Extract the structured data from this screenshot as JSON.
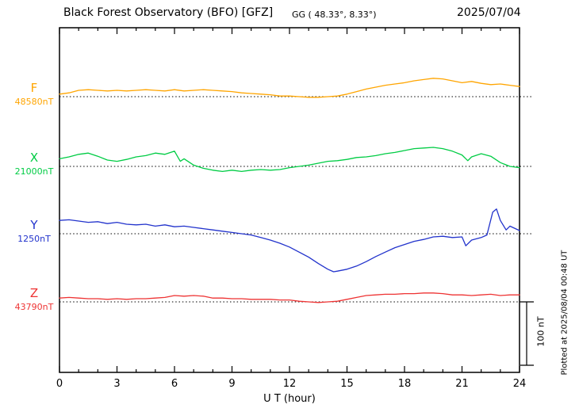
{
  "chart_data": {
    "type": "line",
    "title": "Black Forest Observatory (BFO)  [GFZ]",
    "subtitle": "GG ( 48.33°,  8.33°)",
    "date": "2025/07/04",
    "xlabel": "U T (hour)",
    "x_range": [
      0,
      24
    ],
    "x_ticks_major": [
      0,
      3,
      6,
      9,
      12,
      15,
      18,
      21,
      24
    ],
    "x_minor_step": 1,
    "y_unit": "nT",
    "scale_bar": {
      "label": "100 nT",
      "nT": 100
    },
    "plotted_note": "Plotted at 2025/08/04 00:48 UT",
    "values_are": "offset in nT from each component baseline",
    "series": [
      {
        "name": "F",
        "baseline_label": "48580nT",
        "baseline_nT": 48580,
        "color": "#FFA500",
        "points": [
          [
            0,
            4
          ],
          [
            0.5,
            6
          ],
          [
            1,
            10
          ],
          [
            1.5,
            11
          ],
          [
            2,
            10
          ],
          [
            2.5,
            9
          ],
          [
            3,
            10
          ],
          [
            3.5,
            9
          ],
          [
            4,
            10
          ],
          [
            4.5,
            11
          ],
          [
            5,
            10
          ],
          [
            5.5,
            9
          ],
          [
            6,
            11
          ],
          [
            6.5,
            9
          ],
          [
            7,
            10
          ],
          [
            7.5,
            11
          ],
          [
            8,
            10
          ],
          [
            8.5,
            9
          ],
          [
            9,
            8
          ],
          [
            9.5,
            6
          ],
          [
            10,
            5
          ],
          [
            10.5,
            4
          ],
          [
            11,
            3
          ],
          [
            11.5,
            1
          ],
          [
            12,
            1
          ],
          [
            12.5,
            0
          ],
          [
            13,
            -1
          ],
          [
            13.5,
            -1
          ],
          [
            14,
            0
          ],
          [
            14.5,
            1
          ],
          [
            15,
            4
          ],
          [
            15.5,
            8
          ],
          [
            16,
            12
          ],
          [
            16.5,
            15
          ],
          [
            17,
            18
          ],
          [
            17.5,
            20
          ],
          [
            18,
            22
          ],
          [
            18.5,
            25
          ],
          [
            19,
            27
          ],
          [
            19.5,
            29
          ],
          [
            20,
            28
          ],
          [
            20.5,
            25
          ],
          [
            21,
            22
          ],
          [
            21.5,
            24
          ],
          [
            22,
            21
          ],
          [
            22.5,
            19
          ],
          [
            23,
            20
          ],
          [
            23.5,
            18
          ],
          [
            24,
            16
          ]
        ]
      },
      {
        "name": "X",
        "baseline_label": "21000nT",
        "baseline_nT": 21000,
        "color": "#00CC44",
        "points": [
          [
            0,
            12
          ],
          [
            0.5,
            15
          ],
          [
            1,
            19
          ],
          [
            1.5,
            21
          ],
          [
            2,
            16
          ],
          [
            2.5,
            10
          ],
          [
            3,
            8
          ],
          [
            3.5,
            11
          ],
          [
            4,
            15
          ],
          [
            4.5,
            17
          ],
          [
            5,
            21
          ],
          [
            5.5,
            19
          ],
          [
            6,
            24
          ],
          [
            6.3,
            8
          ],
          [
            6.5,
            12
          ],
          [
            7,
            2
          ],
          [
            7.5,
            -3
          ],
          [
            8,
            -6
          ],
          [
            8.5,
            -8
          ],
          [
            9,
            -6
          ],
          [
            9.5,
            -8
          ],
          [
            10,
            -6
          ],
          [
            10.5,
            -5
          ],
          [
            11,
            -6
          ],
          [
            11.5,
            -5
          ],
          [
            12,
            -2
          ],
          [
            12.5,
            0
          ],
          [
            13,
            2
          ],
          [
            13.5,
            5
          ],
          [
            14,
            8
          ],
          [
            14.5,
            9
          ],
          [
            15,
            11
          ],
          [
            15.5,
            14
          ],
          [
            16,
            15
          ],
          [
            16.5,
            17
          ],
          [
            17,
            20
          ],
          [
            17.5,
            22
          ],
          [
            18,
            25
          ],
          [
            18.5,
            28
          ],
          [
            19,
            29
          ],
          [
            19.5,
            30
          ],
          [
            20,
            28
          ],
          [
            20.5,
            24
          ],
          [
            21,
            18
          ],
          [
            21.3,
            9
          ],
          [
            21.5,
            15
          ],
          [
            22,
            20
          ],
          [
            22.5,
            16
          ],
          [
            23,
            6
          ],
          [
            23.5,
            0
          ],
          [
            24,
            -2
          ]
        ]
      },
      {
        "name": "Y",
        "baseline_label": "1250nT",
        "baseline_nT": 1250,
        "color": "#2233CC",
        "points": [
          [
            0,
            21
          ],
          [
            0.5,
            22
          ],
          [
            1,
            20
          ],
          [
            1.5,
            18
          ],
          [
            2,
            19
          ],
          [
            2.5,
            16
          ],
          [
            3,
            18
          ],
          [
            3.5,
            15
          ],
          [
            4,
            14
          ],
          [
            4.5,
            15
          ],
          [
            5,
            12
          ],
          [
            5.5,
            14
          ],
          [
            6,
            11
          ],
          [
            6.5,
            12
          ],
          [
            7,
            10
          ],
          [
            7.5,
            8
          ],
          [
            8,
            6
          ],
          [
            8.5,
            4
          ],
          [
            9,
            2
          ],
          [
            9.5,
            0
          ],
          [
            10,
            -2
          ],
          [
            10.5,
            -6
          ],
          [
            11,
            -10
          ],
          [
            11.5,
            -15
          ],
          [
            12,
            -21
          ],
          [
            12.5,
            -29
          ],
          [
            13,
            -37
          ],
          [
            13.5,
            -47
          ],
          [
            14,
            -56
          ],
          [
            14.3,
            -60
          ],
          [
            14.5,
            -59
          ],
          [
            15,
            -56
          ],
          [
            15.5,
            -51
          ],
          [
            16,
            -44
          ],
          [
            16.5,
            -36
          ],
          [
            17,
            -29
          ],
          [
            17.5,
            -22
          ],
          [
            18,
            -17
          ],
          [
            18.5,
            -12
          ],
          [
            19,
            -9
          ],
          [
            19.5,
            -5
          ],
          [
            20,
            -4
          ],
          [
            20.5,
            -6
          ],
          [
            21,
            -5
          ],
          [
            21.2,
            -19
          ],
          [
            21.5,
            -10
          ],
          [
            22,
            -6
          ],
          [
            22.3,
            -2
          ],
          [
            22.6,
            34
          ],
          [
            22.8,
            39
          ],
          [
            23,
            21
          ],
          [
            23.3,
            6
          ],
          [
            23.5,
            12
          ],
          [
            24,
            5
          ]
        ]
      },
      {
        "name": "Z",
        "baseline_label": "43790nT",
        "baseline_nT": 43790,
        "color": "#EE3333",
        "points": [
          [
            0,
            6
          ],
          [
            0.5,
            7
          ],
          [
            1,
            6
          ],
          [
            1.5,
            5
          ],
          [
            2,
            5
          ],
          [
            2.5,
            4
          ],
          [
            3,
            5
          ],
          [
            3.5,
            4
          ],
          [
            4,
            5
          ],
          [
            4.5,
            5
          ],
          [
            5,
            6
          ],
          [
            5.5,
            7
          ],
          [
            6,
            10
          ],
          [
            6.5,
            9
          ],
          [
            7,
            10
          ],
          [
            7.5,
            9
          ],
          [
            8,
            6
          ],
          [
            8.5,
            6
          ],
          [
            9,
            5
          ],
          [
            9.5,
            5
          ],
          [
            10,
            4
          ],
          [
            10.5,
            4
          ],
          [
            11,
            4
          ],
          [
            11.5,
            3
          ],
          [
            12,
            3
          ],
          [
            12.5,
            1
          ],
          [
            13,
            0
          ],
          [
            13.5,
            -1
          ],
          [
            14,
            0
          ],
          [
            14.5,
            1
          ],
          [
            15,
            4
          ],
          [
            15.5,
            7
          ],
          [
            16,
            10
          ],
          [
            16.5,
            11
          ],
          [
            17,
            12
          ],
          [
            17.5,
            12
          ],
          [
            18,
            13
          ],
          [
            18.5,
            13
          ],
          [
            19,
            14
          ],
          [
            19.5,
            14
          ],
          [
            20,
            13
          ],
          [
            20.5,
            11
          ],
          [
            21,
            11
          ],
          [
            21.5,
            10
          ],
          [
            22,
            11
          ],
          [
            22.5,
            12
          ],
          [
            23,
            10
          ],
          [
            23.5,
            11
          ],
          [
            24,
            11
          ]
        ]
      }
    ]
  }
}
